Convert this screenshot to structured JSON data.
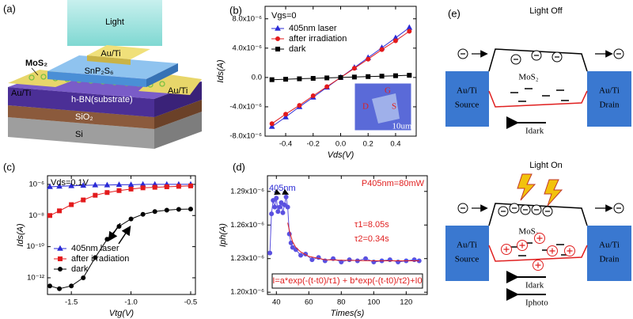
{
  "panel_a": {
    "label": "(a)",
    "light": "Light",
    "top_contact": "Au/Ti",
    "mos2": "MoS₂",
    "snps": "SnP₂S₆",
    "left_contact": "Au/Ti",
    "right_contact": "Au/Ti",
    "hbn": "h-BN(substrate)",
    "sio2": "SiO₂",
    "si": "Si"
  },
  "panel_e": {
    "label": "(e)",
    "off": {
      "title": "Light Off",
      "source": [
        "Au/Ti",
        "Source"
      ],
      "drain": [
        "Au/Ti",
        "Drain"
      ],
      "channel": "MoS₂",
      "currents": [
        "Idark"
      ]
    },
    "on": {
      "title": "Light On",
      "source": [
        "Au/Ti",
        "Source"
      ],
      "drain": [
        "Au/Ti",
        "Drain"
      ],
      "channel": "MoS₂",
      "currents": [
        "Idark",
        "Iphoto"
      ]
    }
  },
  "chart_data": [
    {
      "type": "line",
      "panel": "(b)",
      "xlabel": "Vds(V)",
      "ylabel": "Ids(A)",
      "annotations": [
        "Vgs=0"
      ],
      "inset_labels": [
        "G",
        "D",
        "S",
        "10um"
      ],
      "legend": "upper left",
      "xlim": [
        -0.55,
        0.55
      ],
      "ylim": [
        -8e-06,
        9.7e-06
      ],
      "xticks": [
        -0.4,
        -0.2,
        {
          "value": 0,
          "label": "0.0"
        },
        0.2,
        0.4
      ],
      "yticks": [
        {
          "value": -8e-06,
          "label": "-8.0x10⁻⁶"
        },
        {
          "value": -4e-06,
          "label": "-4.0x10⁻⁶"
        },
        {
          "value": 0,
          "label": "0.0"
        },
        {
          "value": 4e-06,
          "label": "4.0x10⁻⁶"
        },
        {
          "value": 8e-06,
          "label": "8.0x10⁻⁶"
        }
      ],
      "series": [
        {
          "name": "405nm laser",
          "color": "#2b2bd6",
          "marker": "triangle",
          "x": [
            -0.5,
            -0.4,
            -0.3,
            -0.2,
            -0.1,
            0,
            0.1,
            0.2,
            0.3,
            0.4,
            0.5
          ],
          "values": [
            -6.7e-06,
            -5.4e-06,
            -4e-06,
            -2.7e-06,
            -1.35e-06,
            0,
            1.35e-06,
            2.7e-06,
            4.05e-06,
            5.4e-06,
            6.8e-06
          ]
        },
        {
          "name": "after irradiation",
          "color": "#e31a1c",
          "marker": "circle",
          "x": [
            -0.5,
            -0.4,
            -0.3,
            -0.2,
            -0.1,
            0,
            0.1,
            0.2,
            0.3,
            0.4,
            0.5
          ],
          "values": [
            -6.3e-06,
            -5e-06,
            -3.8e-06,
            -2.5e-06,
            -1.25e-06,
            0,
            1.25e-06,
            2.5e-06,
            3.8e-06,
            5e-06,
            6.3e-06
          ]
        },
        {
          "name": "dark",
          "color": "#000000",
          "marker": "square",
          "x": [
            -0.5,
            -0.4,
            -0.3,
            -0.2,
            -0.1,
            0,
            0.1,
            0.2,
            0.3,
            0.4,
            0.5
          ],
          "values": [
            -3e-07,
            -2.4e-07,
            -1.8e-07,
            -1.2e-07,
            -6e-08,
            0,
            6e-08,
            1.2e-07,
            1.8e-07,
            2.4e-07,
            3e-07
          ]
        }
      ]
    },
    {
      "type": "line",
      "panel": "(c)",
      "xlabel": "Vtg(V)",
      "ylabel": "Ids(A)",
      "annotations": [
        "Vds=0.1V"
      ],
      "legend": "lower left",
      "yscale": "log",
      "xlim": [
        -1.7,
        -0.46
      ],
      "ylim": [
        8.5e-14,
        3.6e-06
      ],
      "xticks": [
        -1.5,
        {
          "value": -1,
          "label": "-1.0"
        },
        -0.5
      ],
      "yticks": [
        {
          "value": 1e-12,
          "label": "10⁻¹²"
        },
        {
          "value": 1e-10,
          "label": "10⁻¹⁰"
        },
        {
          "value": 1e-08,
          "label": "10⁻⁸"
        },
        {
          "value": 1e-06,
          "label": "10⁻⁶"
        }
      ],
      "series": [
        {
          "name": "405nm laser",
          "color": "#2b2bd6",
          "marker": "triangle",
          "x": [
            -1.68,
            -1.6,
            -1.5,
            -1.4,
            -1.3,
            -1.2,
            -1.1,
            -1.0,
            -0.9,
            -0.8,
            -0.7,
            -0.6,
            -0.5
          ],
          "values": [
            7e-07,
            7.5e-07,
            8e-07,
            8.5e-07,
            9e-07,
            9e-07,
            9.5e-07,
            9.5e-07,
            1e-06,
            1e-06,
            1e-06,
            1e-06,
            1e-06
          ]
        },
        {
          "name": "after irradiation",
          "color": "#e31a1c",
          "marker": "square",
          "x": [
            -1.68,
            -1.6,
            -1.5,
            -1.4,
            -1.3,
            -1.2,
            -1.1,
            -1.0,
            -0.9,
            -0.8,
            -0.7,
            -0.6,
            -0.5
          ],
          "values": [
            1e-08,
            2e-08,
            5e-08,
            1e-07,
            2e-07,
            3e-07,
            4e-07,
            5e-07,
            6e-07,
            6.5e-07,
            7e-07,
            7.5e-07,
            8e-07
          ]
        },
        {
          "name": "dark",
          "color": "#000000",
          "marker": "circle",
          "x": [
            -1.68,
            -1.6,
            -1.5,
            -1.4,
            -1.3,
            -1.2,
            -1.1,
            -1.0,
            -0.9,
            -0.8,
            -0.7,
            -0.6,
            -0.5
          ],
          "values": [
            3e-13,
            2e-13,
            3e-13,
            1e-12,
            2e-11,
            3e-10,
            2e-09,
            6e-09,
            1.2e-08,
            1.8e-08,
            2.2e-08,
            2.5e-08,
            2.6e-08
          ]
        }
      ]
    },
    {
      "type": "line",
      "panel": "(d)",
      "xlabel": "Times(s)",
      "ylabel": "Iph(A)",
      "annotations": [
        "405nm",
        "P405nm=80mW",
        "τ1=8.05s",
        "τ2=0.34s"
      ],
      "legend": "lower center",
      "xlim": [
        34.5,
        133
      ],
      "ylim": [
        1.198e-06,
        1.304e-06
      ],
      "xticks": [
        40,
        60,
        80,
        100,
        120
      ],
      "yticks": [
        {
          "value": 1.2e-06,
          "label": "1.20x10⁻⁶"
        },
        {
          "value": 1.23e-06,
          "label": "1.23x10⁻⁶"
        },
        {
          "value": 1.26e-06,
          "label": "1.26x10⁻⁶"
        },
        {
          "value": 1.29e-06,
          "label": "1.29x10⁻⁶"
        }
      ],
      "series": [
        {
          "color": "#5a50e0",
          "marker": "circle",
          "x": [
            36,
            37,
            38,
            39,
            40,
            41,
            42,
            43,
            44,
            45,
            46,
            47,
            48,
            49,
            50,
            52,
            55,
            58,
            62,
            66,
            70,
            75,
            80,
            85,
            90,
            95,
            100,
            105,
            110,
            115,
            120,
            125,
            128
          ],
          "values": [
            1.235e-06,
            1.27e-06,
            1.282e-06,
            1.276e-06,
            1.284e-06,
            1.272e-06,
            1.276e-06,
            1.28e-06,
            1.271e-06,
            1.278e-06,
            1.285e-06,
            1.276e-06,
            1.252e-06,
            1.244e-06,
            1.24e-06,
            1.238e-06,
            1.233e-06,
            1.234e-06,
            1.229e-06,
            1.231e-06,
            1.228e-06,
            1.23e-06,
            1.227e-06,
            1.229e-06,
            1.228e-06,
            1.23e-06,
            1.227e-06,
            1.228e-06,
            1.229e-06,
            1.227e-06,
            1.228e-06,
            1.229e-06,
            1.228e-06
          ]
        },
        {
          "name": "I=a*exp(-(t-t0)/τ1) + b*exp(-(t-t0)/τ2)+I0",
          "color": "#e02020",
          "x": [
            47,
            48,
            50,
            52,
            55,
            60,
            70,
            80,
            100,
            128
          ],
          "values": [
            1.262e-06,
            1.255e-06,
            1.245e-06,
            1.24e-06,
            1.236e-06,
            1.232e-06,
            1.229e-06,
            1.2285e-06,
            1.228e-06,
            1.228e-06
          ]
        }
      ]
    }
  ]
}
